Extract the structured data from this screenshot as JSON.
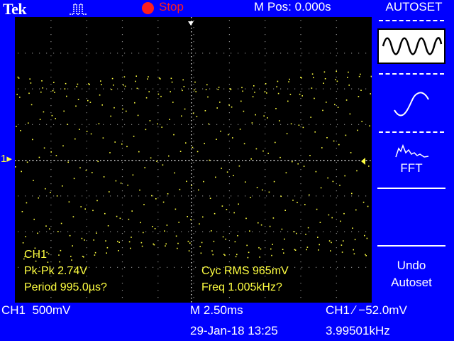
{
  "header": {
    "brand": "Tek",
    "trigger_icon": "pulse-icon",
    "run_status": "Stop",
    "run_status_color": "#ff1e1e",
    "horizontal_position": "M Pos: 0.000s"
  },
  "display": {
    "trace_color": "#ffff40",
    "channel_marker": "1▸",
    "measurements": {
      "channel": "CH1",
      "pk_pk": "Pk-Pk 2.74V",
      "period": "Period 995.0µs?",
      "cyc_rms": "Cyc RMS 965mV",
      "freq": "Freq 1.005kHz?"
    }
  },
  "status_bar": {
    "ch1_scale": "CH1  500mV",
    "timebase": "M 2.50ms",
    "trigger": "CH1 ∕ −52.0mV",
    "date_time": "29-Jan-18 13:25",
    "trigger_freq": "3.99501kHz"
  },
  "side_menu": {
    "title": "AUTOSET",
    "items": [
      {
        "icon": "multi-cycle-sine-icon",
        "label": ""
      },
      {
        "icon": "single-cycle-sine-icon",
        "label": ""
      },
      {
        "icon": "fft-spectrum-icon",
        "label": "FFT"
      },
      {
        "icon": "",
        "label": "Undo\nAutoset"
      }
    ]
  }
}
